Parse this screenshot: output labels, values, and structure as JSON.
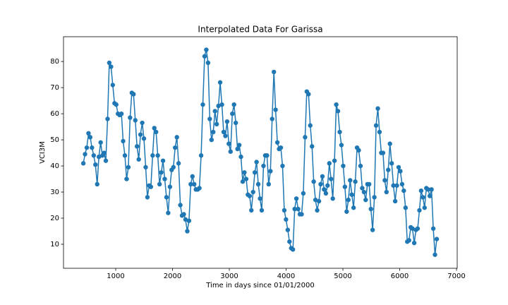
{
  "chart_data": {
    "type": "line",
    "title": "Interpolated Data For Garissa",
    "x_label": "Time in days since 01/01/2000",
    "y_label": "VCI3M",
    "color": "#1f77b4",
    "markers": true,
    "x": [
      430,
      460,
      491,
      521,
      552,
      582,
      613,
      643,
      674,
      704,
      735,
      765,
      796,
      826,
      857,
      887,
      918,
      948,
      979,
      1009,
      1040,
      1070,
      1101,
      1131,
      1162,
      1192,
      1223,
      1253,
      1284,
      1314,
      1345,
      1375,
      1406,
      1436,
      1467,
      1497,
      1528,
      1558,
      1589,
      1619,
      1650,
      1680,
      1711,
      1741,
      1772,
      1802,
      1833,
      1863,
      1894,
      1924,
      1955,
      1985,
      2016,
      2046,
      2077,
      2107,
      2138,
      2168,
      2199,
      2229,
      2260,
      2290,
      2321,
      2351,
      2382,
      2412,
      2443,
      2473,
      2504,
      2534,
      2565,
      2595,
      2626,
      2656,
      2687,
      2717,
      2748,
      2778,
      2809,
      2839,
      2870,
      2900,
      2931,
      2961,
      2992,
      3022,
      3053,
      3083,
      3114,
      3144,
      3175,
      3205,
      3236,
      3266,
      3297,
      3327,
      3358,
      3388,
      3419,
      3449,
      3480,
      3510,
      3541,
      3571,
      3602,
      3632,
      3663,
      3693,
      3724,
      3754,
      3785,
      3815,
      3846,
      3876,
      3907,
      3937,
      3968,
      3998,
      4029,
      4059,
      4090,
      4120,
      4151,
      4181,
      4212,
      4242,
      4273,
      4303,
      4334,
      4364,
      4395,
      4425,
      4456,
      4486,
      4517,
      4547,
      4578,
      4608,
      4639,
      4669,
      4700,
      4730,
      4761,
      4791,
      4822,
      4852,
      4883,
      4913,
      4944,
      4974,
      5005,
      5035,
      5066,
      5096,
      5127,
      5157,
      5188,
      5218,
      5249,
      5279,
      5310,
      5340,
      5371,
      5401,
      5432,
      5462,
      5493,
      5523,
      5554,
      5584,
      5615,
      5645,
      5676,
      5706,
      5737,
      5767,
      5798,
      5828,
      5859,
      5889,
      5920,
      5950,
      5981,
      6011,
      6042,
      6072,
      6103,
      6133,
      6164,
      6194,
      6225,
      6255,
      6286,
      6316,
      6347,
      6377,
      6408,
      6438,
      6469,
      6499,
      6530,
      6560,
      6591,
      6621,
      6652
    ],
    "values": [
      41,
      44.5,
      47,
      52.5,
      51,
      47,
      44,
      40.5,
      33,
      43.5,
      49,
      44,
      45,
      42,
      58,
      79.5,
      78,
      71,
      64,
      63.5,
      60,
      59.5,
      60,
      49.5,
      44,
      35,
      39.5,
      58.5,
      68,
      67.5,
      57.5,
      47.5,
      42.5,
      52,
      56.5,
      50.5,
      39.5,
      28,
      32.5,
      32,
      44,
      54.5,
      53,
      44,
      33,
      37.5,
      42,
      35,
      28,
      22,
      32,
      38.5,
      39.5,
      47,
      51,
      41,
      25,
      21,
      21.5,
      19.5,
      15,
      19,
      33,
      36,
      33,
      31,
      31,
      31.5,
      44,
      63.5,
      82,
      84.5,
      79.5,
      58,
      50,
      53,
      61,
      56,
      63,
      72,
      63.5,
      53,
      51.5,
      57,
      48.5,
      45.5,
      60,
      63.5,
      56.5,
      46.5,
      48,
      43.5,
      34,
      37.5,
      35,
      29,
      28.5,
      23,
      30,
      37.5,
      41.5,
      33,
      27.5,
      23,
      40,
      44,
      44,
      33,
      38,
      58,
      76,
      61.5,
      49,
      46.5,
      47,
      40,
      23,
      19.5,
      15.5,
      11,
      8.5,
      8,
      23.5,
      27.5,
      23.5,
      21.5,
      21.5,
      29.5,
      51,
      68.5,
      67.5,
      55.5,
      47.5,
      34,
      27,
      23,
      26.5,
      33,
      36,
      31,
      29.5,
      32.5,
      41,
      35,
      27.5,
      42,
      63.5,
      61,
      53,
      48,
      40,
      32,
      22.5,
      27,
      34.5,
      29,
      24,
      34,
      47,
      46,
      40,
      31.5,
      30,
      27,
      33,
      33,
      23.5,
      15.5,
      28,
      55.5,
      62,
      53,
      45,
      45,
      34.5,
      30,
      38.5,
      48.5,
      41,
      32.5,
      26.5,
      32.5,
      39.5,
      38,
      33,
      30.5,
      24,
      11,
      11.5,
      16.5,
      16,
      10.5,
      15.5,
      16,
      23,
      30.5,
      28,
      24,
      31.5,
      31,
      28.5,
      31,
      16,
      6,
      12
    ],
    "xlim": [
      81,
      7012
    ],
    "xticks": [
      1000,
      2000,
      3000,
      4000,
      5000,
      6000,
      7000
    ],
    "ylim": [
      0.8,
      89.5
    ],
    "yticks": [
      10,
      20,
      30,
      40,
      50,
      60,
      70,
      80
    ]
  }
}
